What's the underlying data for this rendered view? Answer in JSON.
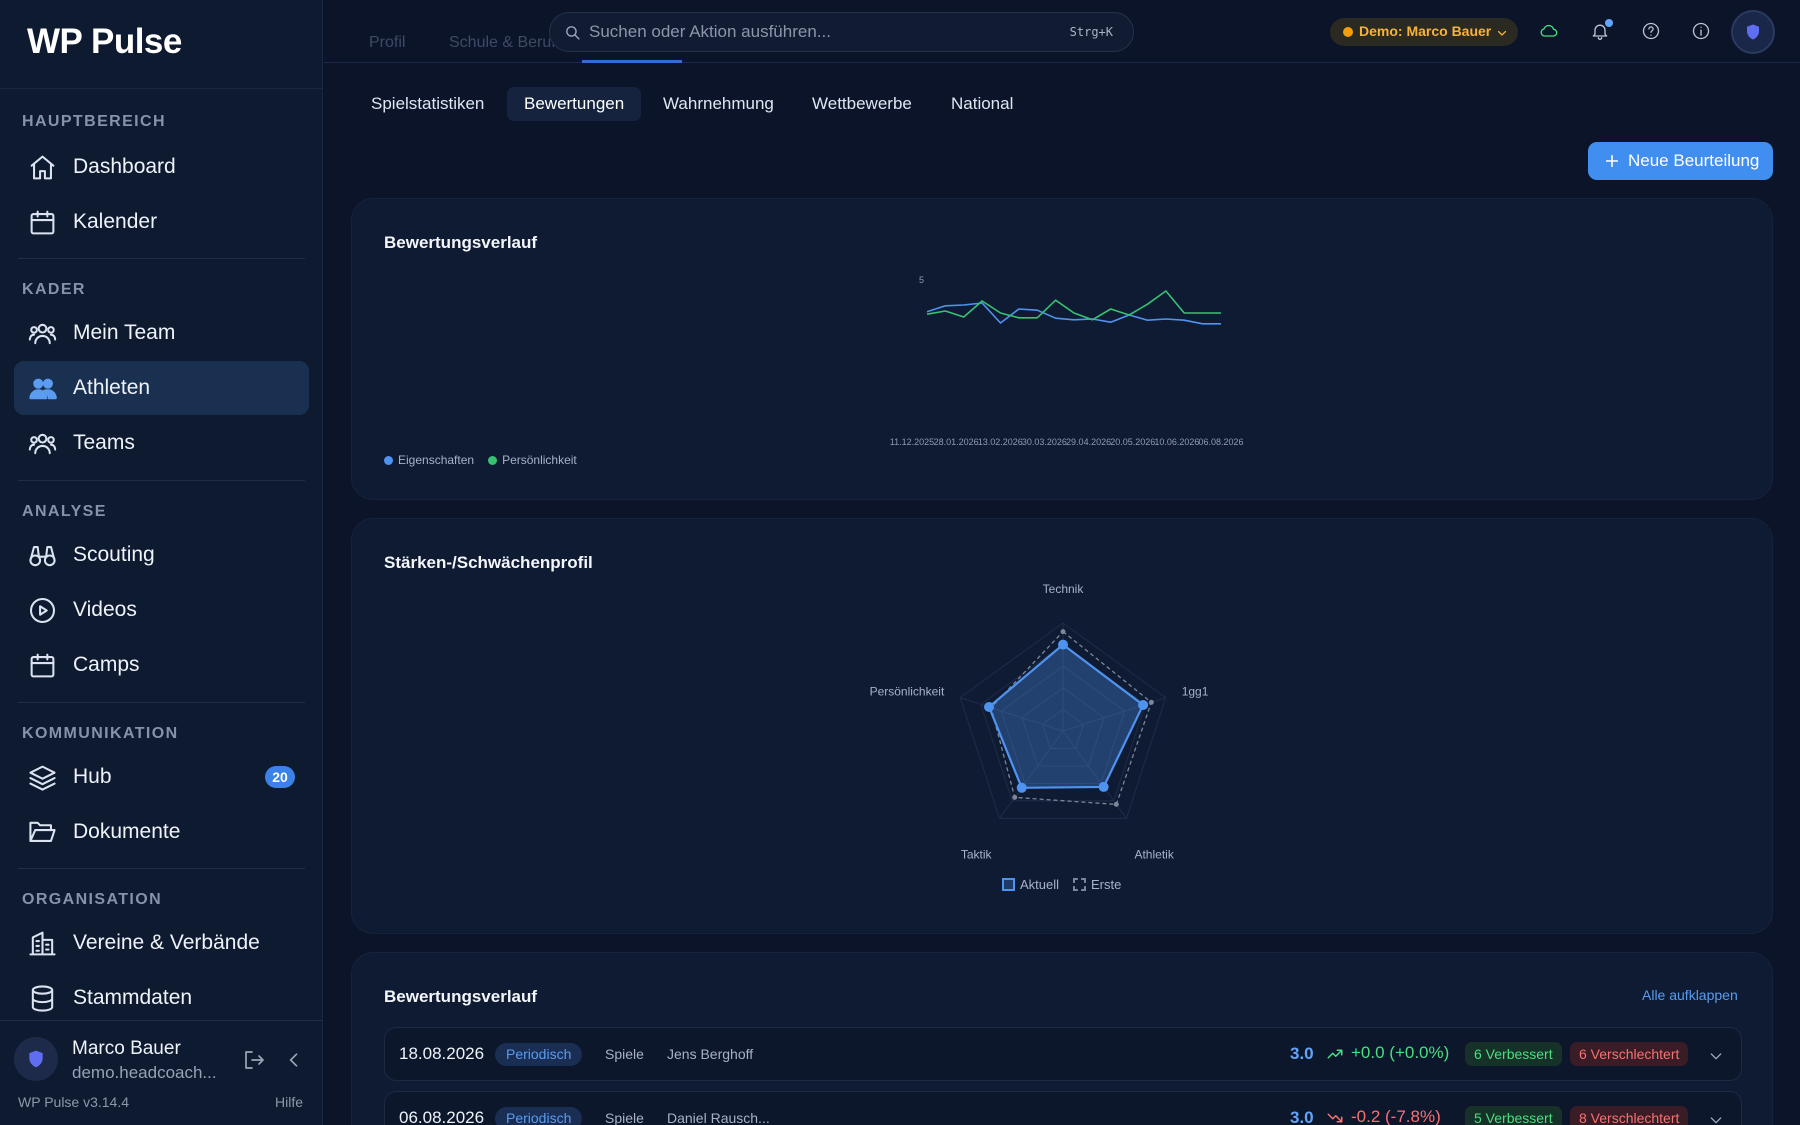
{
  "app": {
    "name": "WP Pulse",
    "version": "WP Pulse v3.14.4",
    "help": "Hilfe"
  },
  "sidebar": {
    "sections": [
      {
        "title": "HAUPTBEREICH",
        "items": [
          {
            "label": "Dashboard",
            "icon": "home-icon"
          },
          {
            "label": "Kalender",
            "icon": "calendar-icon"
          }
        ]
      },
      {
        "title": "KADER",
        "items": [
          {
            "label": "Mein Team",
            "icon": "users-icon"
          },
          {
            "label": "Athleten",
            "icon": "users-icon",
            "active": true
          },
          {
            "label": "Teams",
            "icon": "users-icon"
          }
        ]
      },
      {
        "title": "ANALYSE",
        "items": [
          {
            "label": "Scouting",
            "icon": "binoculars-icon"
          },
          {
            "label": "Videos",
            "icon": "play-circle-icon"
          },
          {
            "label": "Camps",
            "icon": "calendar-icon"
          }
        ]
      },
      {
        "title": "KOMMUNIKATION",
        "items": [
          {
            "label": "Hub",
            "icon": "layers-icon",
            "badge": "20"
          },
          {
            "label": "Dokumente",
            "icon": "folder-icon"
          }
        ]
      },
      {
        "title": "ORGANISATION",
        "items": [
          {
            "label": "Vereine & Verbände",
            "icon": "building-icon"
          },
          {
            "label": "Stammdaten",
            "icon": "database-icon"
          }
        ]
      }
    ],
    "user": {
      "name": "Marco Bauer",
      "email": "demo.headcoach..."
    }
  },
  "topbar": {
    "bg_tabs": [
      "Profil",
      "Schule & Beruf"
    ],
    "search_placeholder": "Suchen oder Aktion ausführen...",
    "search_shortcut": "Strg+K",
    "demo_label": "Demo: Marco Bauer",
    "colors": {
      "demo": "#f7b23b",
      "cloud": "#4ade80"
    }
  },
  "subtabs": [
    {
      "label": "Spielstatistiken",
      "active": false
    },
    {
      "label": "Bewertungen",
      "active": true
    },
    {
      "label": "Wahrnehmung",
      "active": false
    },
    {
      "label": "Wettbewerbe",
      "active": false
    },
    {
      "label": "National",
      "active": false
    }
  ],
  "new_button": "Neue Beurteilung",
  "line_card": {
    "title": "Bewertungsverlauf",
    "legend": [
      {
        "name": "Eigenschaften",
        "color": "#4f93f0"
      },
      {
        "name": "Persönlichkeit",
        "color": "#38c172"
      }
    ]
  },
  "radar_card": {
    "title": "Stärken-/Schwächenprofil",
    "legend": [
      {
        "name": "Aktuell"
      },
      {
        "name": "Erste"
      }
    ]
  },
  "history_card": {
    "title": "Bewertungsverlauf",
    "expand_all": "Alle aufklappen",
    "rows": [
      {
        "date": "18.08.2026",
        "type": "Periodisch",
        "category": "Spiele",
        "coach": "Jens Berghoff",
        "score": "3.0",
        "delta": "+0.0 (+0.0%)",
        "trend": "up",
        "improved": "6 Verbessert",
        "worsened": "6 Verschlechtert"
      },
      {
        "date": "06.08.2026",
        "type": "Periodisch",
        "category": "Spiele",
        "coach": "Daniel Rausch...",
        "score": "3.0",
        "delta": "-0.2 (-7.8%)",
        "trend": "down",
        "improved": "5 Verbessert",
        "worsened": "8 Verschlechtert"
      }
    ]
  },
  "chart_data": [
    {
      "type": "line",
      "title": "Bewertungsverlauf",
      "y_ticks": [
        "5"
      ],
      "x_ticks": [
        "11.12.2025",
        "28.01.2026",
        "13.02.2026",
        "30.03.2026",
        "29.04.2026",
        "20.05.2026",
        "10.06.2026",
        "06.08.2026"
      ],
      "ylim": [
        0,
        5
      ],
      "series": [
        {
          "name": "Eigenschaften",
          "color": "#4f93f0",
          "values": [
            4.78,
            4.93,
            4.95,
            5.0,
            4.5,
            4.85,
            4.82,
            4.62,
            4.58,
            4.6,
            4.52,
            4.7,
            4.57,
            4.6,
            4.57,
            4.48,
            4.48
          ]
        },
        {
          "name": "Persönlichkeit",
          "color": "#38c172",
          "values": [
            4.72,
            4.8,
            4.65,
            5.05,
            4.75,
            4.63,
            4.63,
            5.07,
            4.75,
            4.58,
            4.85,
            4.7,
            4.97,
            5.3,
            4.75,
            4.75,
            4.75
          ]
        }
      ]
    },
    {
      "type": "radar",
      "title": "Stärken-/Schwächenprofil",
      "axes": [
        "Technik",
        "1gg1",
        "Athletik",
        "Taktik",
        "Persönlichkeit"
      ],
      "range": [
        0,
        5
      ],
      "series": [
        {
          "name": "Aktuell",
          "color": "#4f93f0",
          "values": [
            4.0,
            3.9,
            3.2,
            3.25,
            3.6
          ]
        },
        {
          "name": "Erste",
          "color": "#7c8699",
          "values": [
            4.6,
            4.3,
            4.2,
            3.8,
            3.5
          ]
        }
      ]
    }
  ]
}
